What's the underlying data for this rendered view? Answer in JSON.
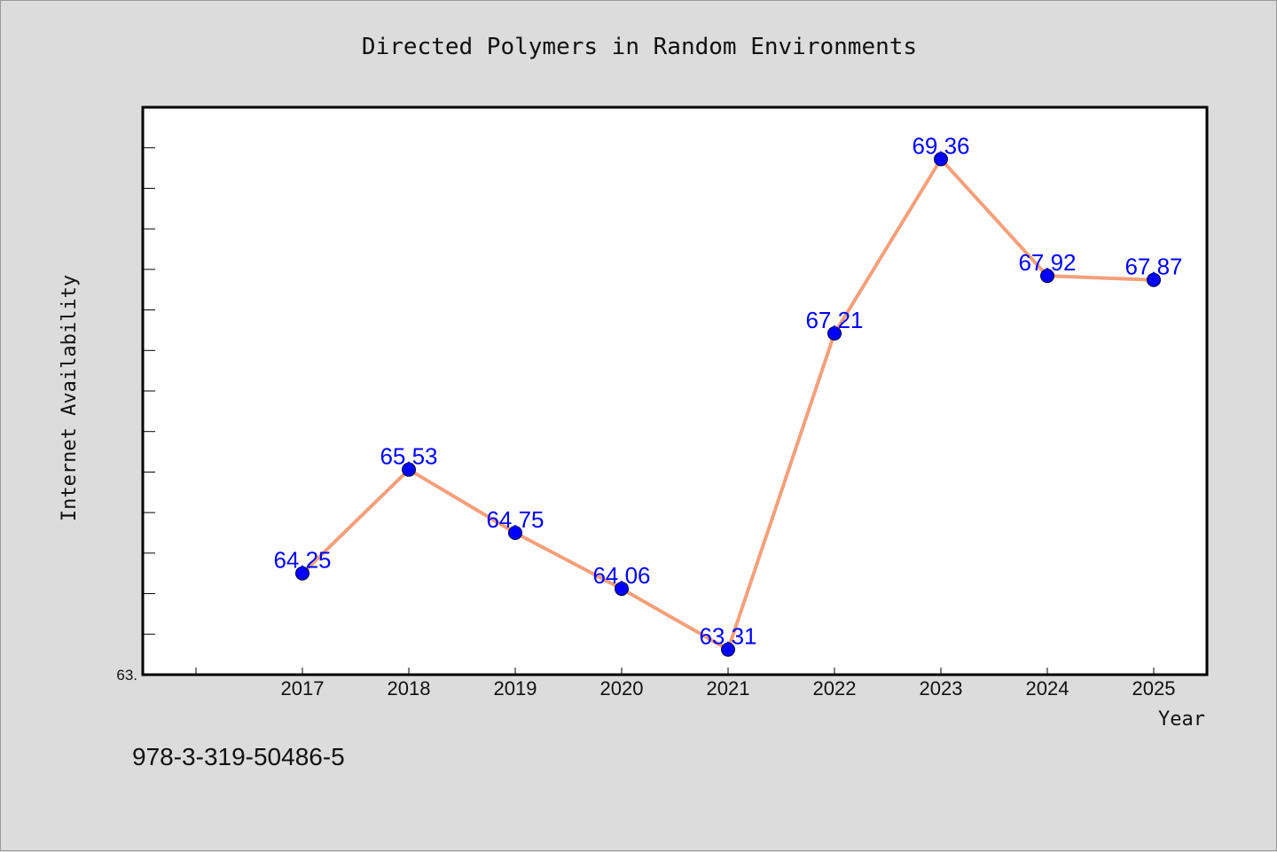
{
  "chart_data": {
    "type": "line",
    "title": "Directed Polymers in Random Environments",
    "xlabel": "Year",
    "ylabel": "Internet Availability",
    "categories": [
      "2017",
      "2018",
      "2019",
      "2020",
      "2021",
      "2022",
      "2023",
      "2024",
      "2025"
    ],
    "values": [
      64.25,
      65.53,
      64.75,
      64.06,
      63.31,
      67.21,
      69.36,
      67.92,
      67.87
    ],
    "data_labels": [
      "64.25",
      "65.53",
      "64.75",
      "64.06",
      "63.31",
      "67.21",
      "69.36",
      "67.92",
      "67.87"
    ],
    "ylim": [
      63.0,
      70.0
    ],
    "y_min_label": "63.",
    "line_color": "#f4a07a",
    "marker_color": "#0000ff",
    "label_color": "#0000ff",
    "grid": false,
    "legend": "none"
  },
  "footer": {
    "isbn": "978-3-319-50486-5"
  }
}
